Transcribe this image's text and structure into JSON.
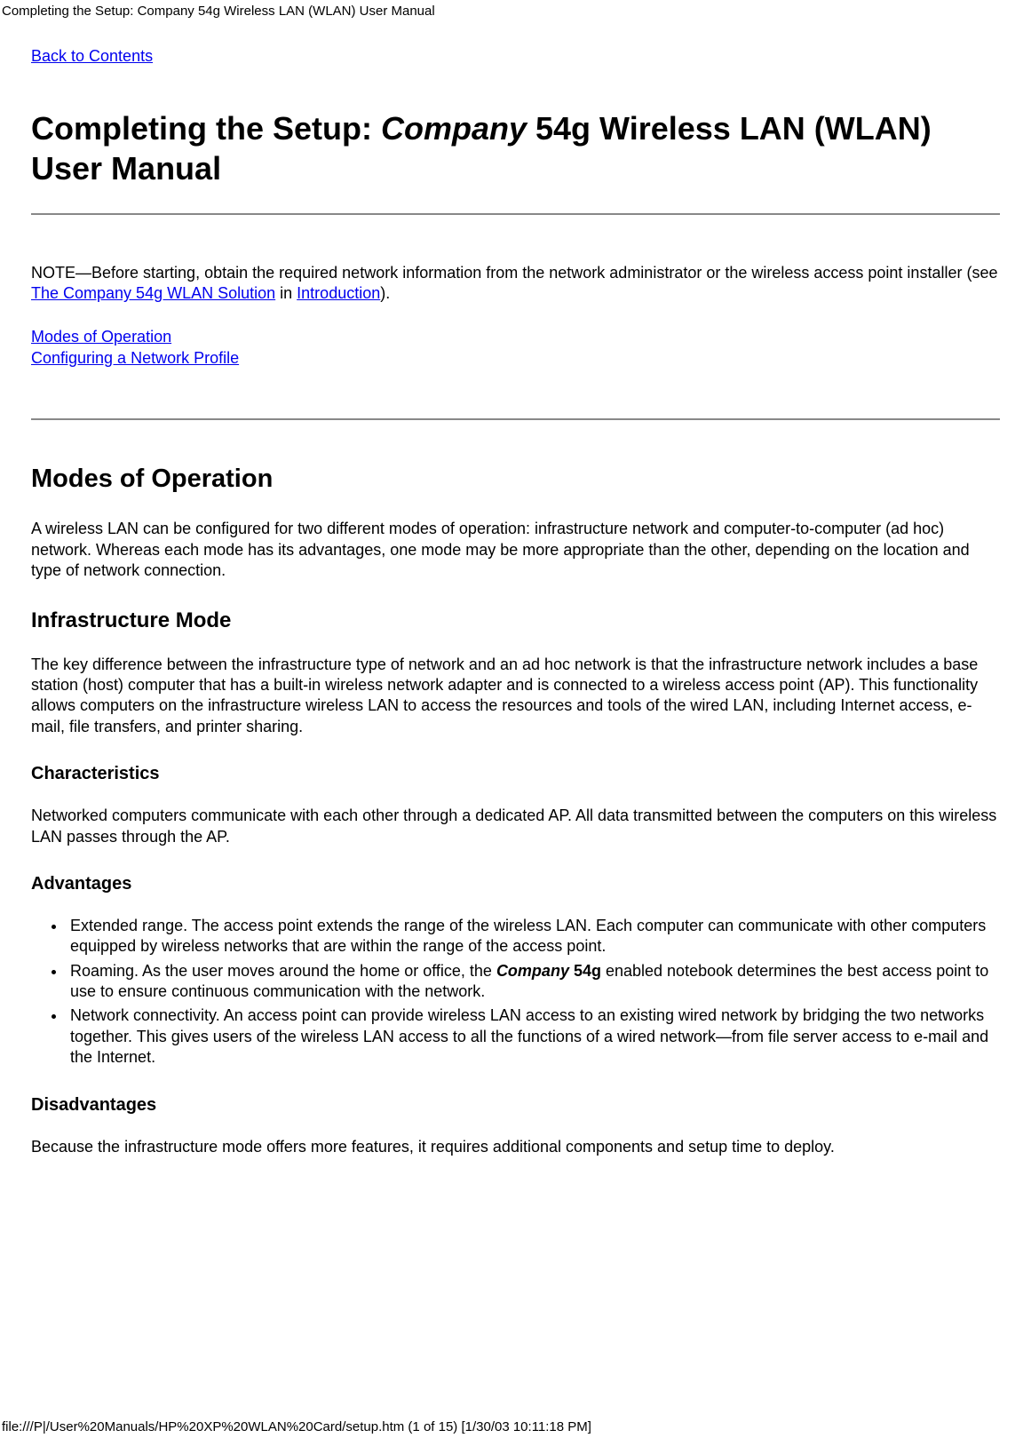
{
  "header_path": "Completing the Setup: Company 54g Wireless LAN (WLAN) User Manual",
  "back_link": "Back to Contents",
  "title_prefix": "Completing the Setup: ",
  "title_company": "Company",
  "title_suffix": " 54g Wireless LAN (WLAN) User Manual",
  "note": {
    "prefix": "NOTE—Before starting, obtain the required network information from the network administrator or the wireless access point installer (see ",
    "link1": "The Company 54g WLAN Solution",
    "mid": " in ",
    "link2": "Introduction",
    "suffix": ")."
  },
  "toc": {
    "item1": "Modes of Operation",
    "item2": "Configuring a Network Profile"
  },
  "h2_modes": "Modes of Operation",
  "modes_intro": "A wireless LAN can be configured for two different modes of operation: infrastructure network and computer-to-computer (ad hoc) network. Whereas each mode has its advantages, one mode may be more appropriate than the other, depending on the location and type of network connection.",
  "h3_infra": "Infrastructure Mode",
  "infra_para": "The key difference between the infrastructure type of network and an ad hoc network is that the infrastructure network includes a base station (host) computer that has a built-in wireless network adapter and is connected to a wireless access point (AP). This functionality allows computers on the infrastructure wireless LAN to access the resources and tools of the wired LAN, including Internet access, e-mail, file transfers, and printer sharing.",
  "h4_char": "Characteristics",
  "char_para": "Networked computers communicate with each other through a dedicated AP. All data transmitted between the computers on this wireless LAN passes through the AP.",
  "h4_adv": "Advantages",
  "adv": {
    "item1": "Extended range. The access point extends the range of the wireless LAN. Each computer can communicate with other computers equipped by wireless networks that are within the range of the access point.",
    "item2_pre": "Roaming. As the user moves around the home or office, the ",
    "item2_company": "Company",
    "item2_product": " 54g",
    "item2_post": " enabled notebook determines the best access point to use to ensure continuous communication with the network.",
    "item3": "Network connectivity. An access point can provide wireless LAN access to an existing wired network by bridging the two networks together. This gives users of the wireless LAN access to all the functions of a wired network—from file server access to e-mail and the Internet."
  },
  "h4_dis": "Disadvantages",
  "dis_para": "Because the infrastructure mode offers more features, it requires additional components and setup time to deploy.",
  "footer": "file:///P|/User%20Manuals/HP%20XP%20WLAN%20Card/setup.htm (1 of 15) [1/30/03 10:11:18 PM]"
}
